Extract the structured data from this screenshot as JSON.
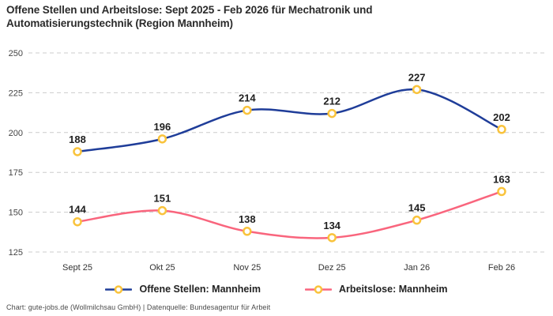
{
  "title": "Offene Stellen und Arbeitslose: Sept 2025 - Feb 2026 für Mechatronik und Automatisierungstechnik (Region Mannheim)",
  "footer": "Chart: gute-jobs.de (Wollmilchsau GmbH) | Datenquelle: Bundesagentur für Arbeit",
  "colors": {
    "series1": "#1f3d99",
    "series2": "#f9657d",
    "marker_ring": "#f9c33c",
    "marker_fill": "#ffffff",
    "grid": "#cccccc",
    "data_label": "#1f1f1f",
    "axis_tick": "#444444"
  },
  "chart_data": {
    "type": "line",
    "title": "Offene Stellen und Arbeitslose: Sept 2025 - Feb 2026 für Mechatronik und Automatisierungstechnik (Region Mannheim)",
    "categories": [
      "Sept 25",
      "Okt 25",
      "Nov 25",
      "Dez 25",
      "Jan 26",
      "Feb 26"
    ],
    "series": [
      {
        "name": "Offene Stellen: Mannheim",
        "values": [
          188,
          196,
          214,
          212,
          227,
          202
        ],
        "color": "#1f3d99"
      },
      {
        "name": "Arbeitslose: Mannheim",
        "values": [
          144,
          151,
          138,
          134,
          145,
          163
        ],
        "color": "#f9657d"
      }
    ],
    "yticks": [
      250,
      225,
      200,
      175,
      150,
      125
    ],
    "ylim": [
      125,
      250
    ],
    "xlabel": "",
    "ylabel": "",
    "grid": "horizontal-dashed",
    "legend_position": "bottom",
    "marker": "gold-ring-white-fill",
    "data_labels": true
  }
}
